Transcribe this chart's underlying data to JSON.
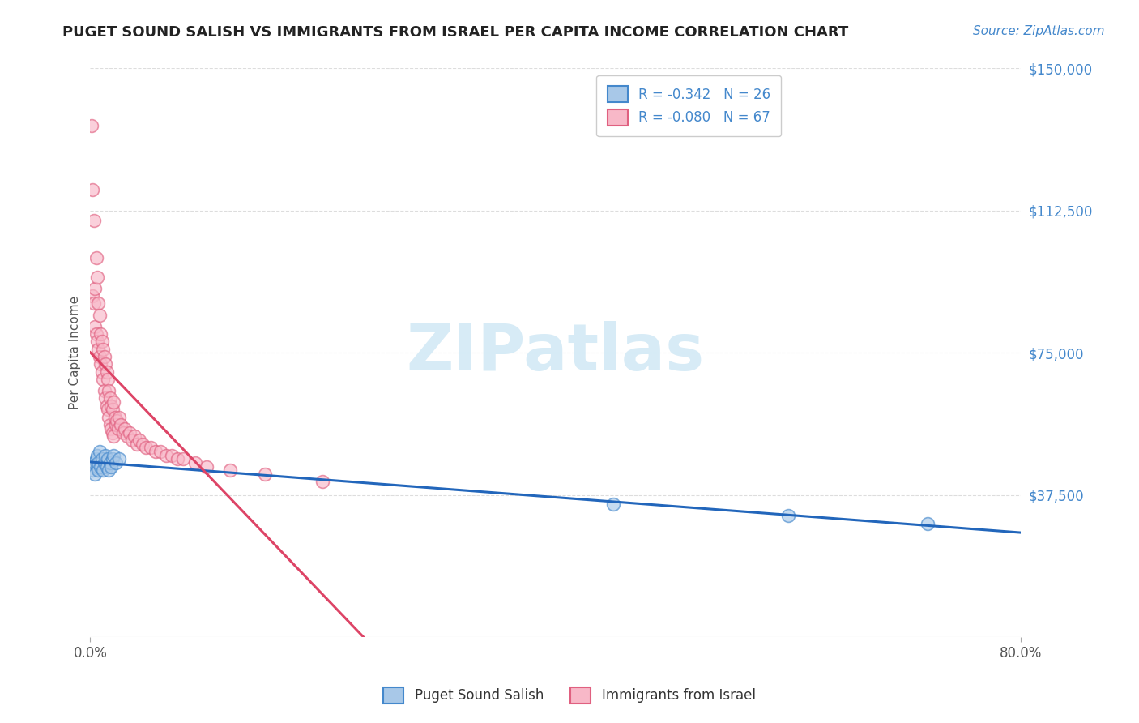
{
  "title": "PUGET SOUND SALISH VS IMMIGRANTS FROM ISRAEL PER CAPITA INCOME CORRELATION CHART",
  "source_text": "Source: ZipAtlas.com",
  "ylabel": "Per Capita Income",
  "xlim": [
    0.0,
    0.8
  ],
  "ylim": [
    0,
    150000
  ],
  "yticks": [
    0,
    37500,
    75000,
    112500,
    150000
  ],
  "ytick_labels": [
    "",
    "$37,500",
    "$75,000",
    "$112,500",
    "$150,000"
  ],
  "xticks": [
    0.0,
    0.8
  ],
  "xtick_labels": [
    "0.0%",
    "80.0%"
  ],
  "legend_r1": "-0.342",
  "legend_n1": "26",
  "legend_r2": "-0.080",
  "legend_n2": "67",
  "label1": "Puget Sound Salish",
  "label2": "Immigrants from Israel",
  "color_blue_fill": "#a8c8e8",
  "color_pink_fill": "#f8b8c8",
  "color_blue_edge": "#4488cc",
  "color_pink_edge": "#e06080",
  "color_blue_line": "#2266bb",
  "color_pink_line": "#dd4466",
  "color_gray_dashed": "#cc8899",
  "color_ytick": "#4488cc",
  "background_color": "#ffffff",
  "grid_color": "#dddddd",
  "blue_scatter_x": [
    0.002,
    0.003,
    0.004,
    0.005,
    0.006,
    0.006,
    0.007,
    0.007,
    0.008,
    0.009,
    0.01,
    0.011,
    0.012,
    0.013,
    0.014,
    0.015,
    0.016,
    0.017,
    0.018,
    0.019,
    0.02,
    0.022,
    0.025,
    0.45,
    0.6,
    0.72
  ],
  "blue_scatter_y": [
    44000,
    46000,
    43000,
    47000,
    45000,
    48000,
    44000,
    46000,
    49000,
    45000,
    47000,
    44000,
    46000,
    48000,
    45000,
    47000,
    44000,
    46000,
    45000,
    47000,
    48000,
    46000,
    47000,
    35000,
    32000,
    30000
  ],
  "pink_scatter_x": [
    0.001,
    0.002,
    0.002,
    0.003,
    0.003,
    0.004,
    0.004,
    0.005,
    0.005,
    0.006,
    0.006,
    0.007,
    0.007,
    0.008,
    0.008,
    0.009,
    0.009,
    0.01,
    0.01,
    0.011,
    0.011,
    0.012,
    0.012,
    0.013,
    0.013,
    0.014,
    0.014,
    0.015,
    0.015,
    0.016,
    0.016,
    0.017,
    0.017,
    0.018,
    0.018,
    0.019,
    0.019,
    0.02,
    0.02,
    0.021,
    0.022,
    0.023,
    0.024,
    0.025,
    0.026,
    0.028,
    0.03,
    0.032,
    0.034,
    0.036,
    0.038,
    0.04,
    0.042,
    0.045,
    0.048,
    0.052,
    0.056,
    0.06,
    0.065,
    0.07,
    0.075,
    0.08,
    0.09,
    0.1,
    0.12,
    0.15,
    0.2
  ],
  "pink_scatter_y": [
    135000,
    118000,
    90000,
    110000,
    88000,
    92000,
    82000,
    100000,
    80000,
    95000,
    78000,
    88000,
    76000,
    85000,
    74000,
    80000,
    72000,
    78000,
    70000,
    76000,
    68000,
    74000,
    65000,
    72000,
    63000,
    70000,
    61000,
    68000,
    60000,
    65000,
    58000,
    63000,
    56000,
    61000,
    55000,
    60000,
    54000,
    62000,
    53000,
    58000,
    56000,
    57000,
    55000,
    58000,
    56000,
    54000,
    55000,
    53000,
    54000,
    52000,
    53000,
    51000,
    52000,
    51000,
    50000,
    50000,
    49000,
    49000,
    48000,
    48000,
    47000,
    47000,
    46000,
    45000,
    44000,
    43000,
    41000
  ],
  "watermark_text": "ZIPatlas",
  "watermark_color": "#d0e8f5"
}
